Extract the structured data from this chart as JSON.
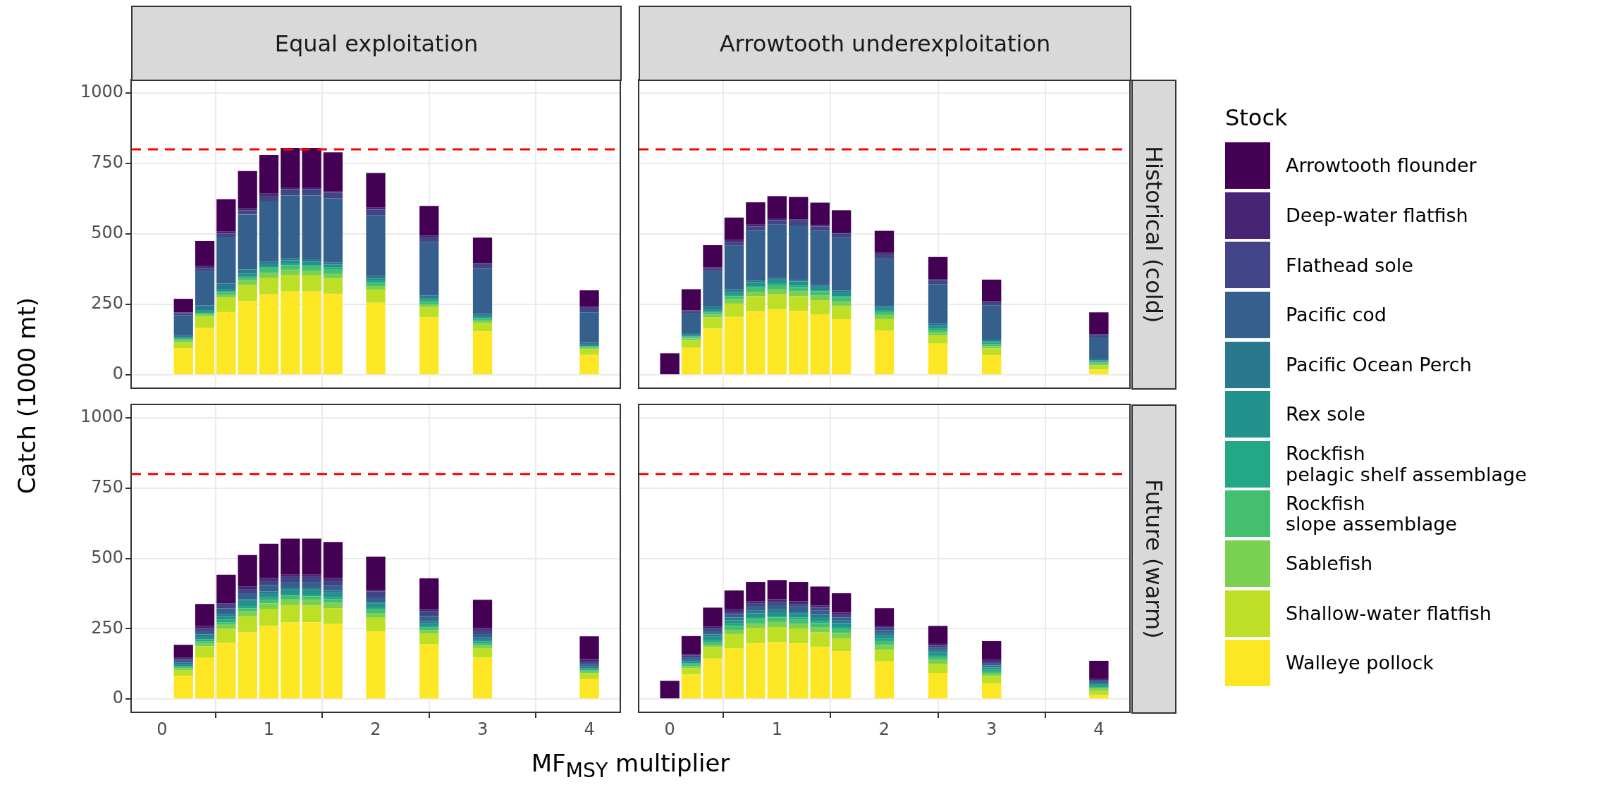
{
  "chart_data": [
    {
      "type": "bar",
      "title": "Equal exploitation",
      "ylabel": "Catch (1000 mt)",
      "stacked": true,
      "grid": true,
      "tick_labels": "y",
      "legend": false,
      "xlim": [
        -0.29,
        4.29
      ],
      "xticks": [
        0,
        1,
        2,
        3,
        4
      ],
      "ylim": [
        -47,
        1047
      ],
      "yticks": [
        0,
        250,
        500,
        750,
        1000
      ],
      "ref_lines": [
        {
          "axis": "y",
          "value": 800,
          "color": "#ff0000",
          "line_style": "dashed"
        }
      ],
      "x": [
        0.2,
        0.4,
        0.6,
        0.8,
        1.0,
        1.2,
        1.4,
        1.6,
        2,
        2.5,
        3,
        4
      ],
      "series": [
        {
          "color": "#fde725",
          "values": [
            94,
            167,
            223,
            262,
            286,
            296,
            296,
            288,
            256,
            204,
            154,
            71
          ]
        },
        {
          "color": "#bddf26",
          "values": [
            22,
            40,
            52,
            57,
            59,
            59,
            57,
            54,
            46,
            37,
            31,
            21
          ]
        },
        {
          "color": "#7ad151",
          "values": [
            7,
            8,
            10,
            17,
            17,
            18,
            17,
            16,
            13,
            9,
            7,
            4
          ]
        },
        {
          "color": "#44bf70",
          "values": [
            4,
            5,
            7,
            8,
            16,
            16,
            15,
            17,
            12,
            9,
            7,
            4
          ]
        },
        {
          "color": "#22a884",
          "values": [
            3,
            3,
            4,
            6,
            4,
            4,
            4,
            6,
            6,
            7,
            4,
            2
          ]
        },
        {
          "color": "#21918c",
          "values": [
            4,
            7,
            7,
            9,
            13,
            13,
            13,
            11,
            9,
            7,
            7,
            6
          ]
        },
        {
          "color": "#2a788e",
          "values": [
            7,
            17,
            21,
            15,
            7,
            7,
            8,
            6,
            9,
            9,
            7,
            6
          ]
        },
        {
          "color": "#355f8d",
          "values": [
            70,
            121,
            166,
            195,
            213,
            224,
            227,
            228,
            215,
            189,
            159,
            108
          ]
        },
        {
          "color": "#414487",
          "values": [
            8,
            11,
            11,
            15,
            20,
            22,
            22,
            20,
            20,
            19,
            17,
            16
          ]
        },
        {
          "color": "#482475",
          "values": [
            3,
            7,
            7,
            8,
            8,
            6,
            6,
            6,
            7,
            4,
            4,
            3
          ]
        },
        {
          "color": "#440154",
          "values": [
            48,
            89,
            115,
            131,
            137,
            140,
            140,
            137,
            123,
            105,
            90,
            59
          ]
        }
      ]
    },
    {
      "type": "bar",
      "title": "Arrowtooth underexploitation",
      "subtitle": "Historical (cold)",
      "stacked": true,
      "grid": true,
      "tick_labels": false,
      "legend": "right",
      "legend_title": "Stock",
      "xlim": [
        -0.29,
        4.29
      ],
      "xticks": [
        0,
        1,
        2,
        3,
        4
      ],
      "ylim": [
        -47,
        1047
      ],
      "yticks": [
        0,
        250,
        500,
        750,
        1000
      ],
      "ref_lines": [
        {
          "axis": "y",
          "value": 800,
          "color": "#ff0000",
          "line_style": "dashed"
        }
      ],
      "x": [
        0,
        0.2,
        0.4,
        0.6,
        0.8,
        1.0,
        1.2,
        1.4,
        1.6,
        2,
        2.5,
        3,
        4
      ],
      "series": [
        {
          "name": "Walleye pollock",
          "color": "#fde725",
          "values": [
            0,
            96,
            164,
            206,
            226,
            233,
            227,
            215,
            198,
            158,
            111,
            70,
            19
          ]
        },
        {
          "name": "Shallow-water flatfish",
          "color": "#bddf26",
          "values": [
            0,
            26,
            40,
            47,
            53,
            53,
            52,
            50,
            46,
            40,
            29,
            24,
            15
          ]
        },
        {
          "name": "Sablefish",
          "color": "#7ad151",
          "values": [
            0,
            7,
            10,
            16,
            16,
            17,
            17,
            16,
            15,
            15,
            11,
            8,
            5
          ]
        },
        {
          "name": "Rockfish\nslope assemblage",
          "color": "#44bf70",
          "values": [
            0,
            5,
            7,
            10,
            14,
            15,
            16,
            16,
            15,
            10,
            9,
            7,
            5
          ]
        },
        {
          "name": "Rockfish\npelagic shelf assemblage",
          "color": "#22a884",
          "values": [
            0,
            3,
            5,
            6,
            6,
            5,
            5,
            3,
            5,
            5,
            5,
            5,
            3
          ]
        },
        {
          "name": "Rex sole",
          "color": "#21918c",
          "values": [
            0,
            5,
            7,
            9,
            14,
            15,
            14,
            15,
            14,
            10,
            9,
            5,
            5
          ]
        },
        {
          "name": "Pacific Ocean Perch",
          "color": "#2a788e",
          "values": [
            0,
            6,
            12,
            9,
            4,
            5,
            5,
            3,
            5,
            6,
            7,
            9,
            6
          ]
        },
        {
          "name": "Pacific cod",
          "color": "#355f8d",
          "values": [
            0,
            70,
            123,
            155,
            179,
            190,
            194,
            193,
            188,
            169,
            141,
            119,
            75
          ]
        },
        {
          "name": "Flathead sole",
          "color": "#414487",
          "values": [
            0,
            8,
            9,
            14,
            15,
            16,
            16,
            15,
            16,
            15,
            15,
            11,
            9
          ]
        },
        {
          "name": "Deep-water flatfish",
          "color": "#482475",
          "values": [
            0,
            3,
            5,
            6,
            6,
            6,
            6,
            6,
            3,
            5,
            3,
            3,
            3
          ]
        },
        {
          "name": "Arrowtooth flounder",
          "color": "#440154",
          "values": [
            77,
            75,
            78,
            80,
            79,
            79,
            79,
            79,
            79,
            78,
            78,
            77,
            77
          ]
        }
      ]
    },
    {
      "type": "bar",
      "xlabel": "MF$_{MSY}$ multiplier",
      "stacked": true,
      "grid": true,
      "legend": false,
      "xlim": [
        -0.29,
        4.29
      ],
      "xticks": [
        0,
        1,
        2,
        3,
        4
      ],
      "ylim": [
        -47,
        1047
      ],
      "yticks": [
        0,
        250,
        500,
        750,
        1000
      ],
      "ref_lines": [
        {
          "axis": "y",
          "value": 800,
          "color": "#ff0000",
          "line_style": "dashed"
        }
      ],
      "x": [
        0.2,
        0.4,
        0.6,
        0.8,
        1.0,
        1.2,
        1.4,
        1.6,
        2,
        2.5,
        3,
        4
      ],
      "series": [
        {
          "color": "#fde725",
          "values": [
            82,
            148,
            200,
            237,
            260,
            272,
            273,
            267,
            240,
            195,
            147,
            71
          ]
        },
        {
          "color": "#bddf26",
          "values": [
            21,
            39,
            50,
            57,
            61,
            62,
            59,
            56,
            49,
            38,
            34,
            21
          ]
        },
        {
          "color": "#7ad151",
          "values": [
            6,
            11,
            16,
            18,
            19,
            20,
            21,
            19,
            17,
            12,
            9,
            6
          ]
        },
        {
          "color": "#44bf70",
          "values": [
            4,
            7,
            7,
            10,
            13,
            13,
            12,
            13,
            13,
            9,
            8,
            4
          ]
        },
        {
          "color": "#22a884",
          "values": [
            4,
            7,
            9,
            7,
            7,
            4,
            6,
            7,
            7,
            7,
            6,
            4
          ]
        },
        {
          "color": "#21918c",
          "values": [
            6,
            9,
            13,
            20,
            16,
            18,
            18,
            16,
            13,
            8,
            7,
            4
          ]
        },
        {
          "color": "#2a788e",
          "values": [
            6,
            9,
            8,
            6,
            7,
            7,
            7,
            7,
            4,
            8,
            8,
            7
          ]
        },
        {
          "color": "#355f8d",
          "values": [
            7,
            11,
            19,
            21,
            22,
            20,
            20,
            18,
            18,
            18,
            12,
            7
          ]
        },
        {
          "color": "#414487",
          "values": [
            6,
            9,
            12,
            15,
            16,
            18,
            18,
            18,
            22,
            18,
            15,
            9
          ]
        },
        {
          "color": "#482475",
          "values": [
            6,
            9,
            6,
            8,
            9,
            8,
            8,
            9,
            4,
            4,
            6,
            9
          ]
        },
        {
          "color": "#440154",
          "values": [
            45,
            79,
            102,
            113,
            122,
            128,
            128,
            128,
            119,
            112,
            101,
            81
          ]
        }
      ]
    },
    {
      "type": "bar",
      "subtitle": "Future (warm)",
      "stacked": true,
      "grid": true,
      "tick_labels": "x",
      "legend": false,
      "xlim": [
        -0.29,
        4.29
      ],
      "xticks": [
        0,
        1,
        2,
        3,
        4
      ],
      "ylim": [
        -47,
        1047
      ],
      "yticks": [
        0,
        250,
        500,
        750,
        1000
      ],
      "ref_lines": [
        {
          "axis": "y",
          "value": 800,
          "color": "#ff0000",
          "line_style": "dashed"
        }
      ],
      "x": [
        0,
        0.2,
        0.4,
        0.6,
        0.8,
        1.0,
        1.2,
        1.4,
        1.6,
        2,
        2.5,
        3,
        4
      ],
      "series": [
        {
          "color": "#fde725",
          "values": [
            0,
            87,
            144,
            181,
            198,
            202,
            198,
            186,
            170,
            134,
            93,
            56,
            14
          ]
        },
        {
          "color": "#bddf26",
          "values": [
            0,
            23,
            41,
            50,
            54,
            54,
            53,
            51,
            46,
            41,
            32,
            26,
            16
          ]
        },
        {
          "color": "#7ad151",
          "values": [
            0,
            7,
            8,
            15,
            16,
            20,
            16,
            17,
            19,
            17,
            14,
            9,
            7
          ]
        },
        {
          "color": "#44bf70",
          "values": [
            0,
            5,
            9,
            14,
            17,
            14,
            16,
            16,
            14,
            14,
            10,
            7,
            6
          ]
        },
        {
          "color": "#22a884",
          "values": [
            0,
            5,
            7,
            9,
            6,
            6,
            7,
            7,
            7,
            8,
            7,
            7,
            5
          ]
        },
        {
          "color": "#21918c",
          "values": [
            0,
            7,
            14,
            11,
            14,
            15,
            14,
            14,
            14,
            11,
            11,
            7,
            5
          ]
        },
        {
          "color": "#2a788e",
          "values": [
            0,
            7,
            7,
            10,
            9,
            8,
            7,
            9,
            9,
            9,
            7,
            7,
            5
          ]
        },
        {
          "color": "#355f8d",
          "values": [
            0,
            7,
            11,
            12,
            17,
            17,
            18,
            14,
            11,
            11,
            8,
            7,
            5
          ]
        },
        {
          "color": "#414487",
          "values": [
            0,
            6,
            9,
            9,
            8,
            9,
            9,
            11,
            9,
            9,
            8,
            5,
            5
          ]
        },
        {
          "color": "#482475",
          "values": [
            0,
            5,
            8,
            8,
            9,
            10,
            9,
            8,
            8,
            7,
            6,
            8,
            5
          ]
        },
        {
          "color": "#440154",
          "values": [
            65,
            65,
            67,
            67,
            68,
            68,
            69,
            67,
            69,
            62,
            64,
            67,
            63
          ]
        }
      ]
    }
  ]
}
